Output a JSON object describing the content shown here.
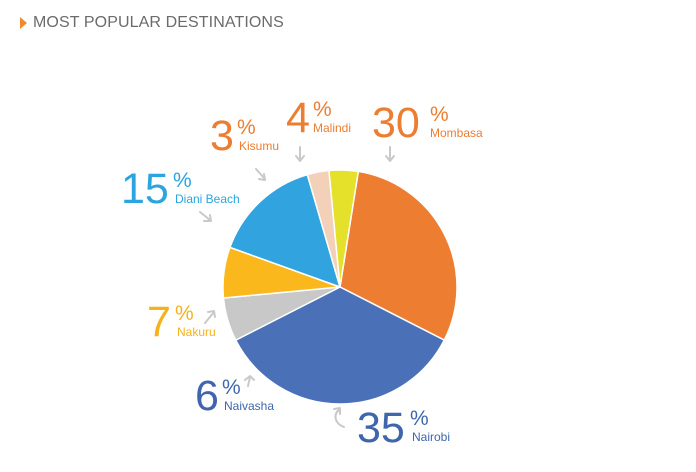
{
  "header": {
    "title": "MOST POPULAR DESTINATIONS"
  },
  "chart_data": {
    "type": "pie",
    "title": "MOST POPULAR DESTINATIONS",
    "slices": [
      {
        "name": "Mombasa",
        "value": 30,
        "number": "30",
        "pct": "%",
        "color": "#ec7d31"
      },
      {
        "name": "Nairobi",
        "value": 35,
        "number": "35",
        "pct": "%",
        "color": "#4a70b8"
      },
      {
        "name": "Naivasha",
        "value": 6,
        "number": "6",
        "pct": "%",
        "color": "#c8c8c8"
      },
      {
        "name": "Nakuru",
        "value": 7,
        "number": "7",
        "pct": "%",
        "color": "#fbb81c"
      },
      {
        "name": "Diani Beach",
        "value": 15,
        "number": "15",
        "pct": "%",
        "color": "#31a4df"
      },
      {
        "name": "Kisumu",
        "value": 3,
        "number": "3",
        "pct": "%",
        "color": "#f3d0b8"
      },
      {
        "name": "Malindi",
        "value": 4,
        "number": "4",
        "pct": "%",
        "color": "#e5e02a"
      }
    ],
    "label_colors": {
      "Mombasa": "#ec7d31",
      "Nairobi": "#3f66ad",
      "Naivasha": "#3f66ad",
      "Nakuru": "#f6b21b",
      "Diani Beach": "#2aa5e0",
      "Kisumu": "#ec7d31",
      "Malindi": "#ec7d31"
    }
  }
}
